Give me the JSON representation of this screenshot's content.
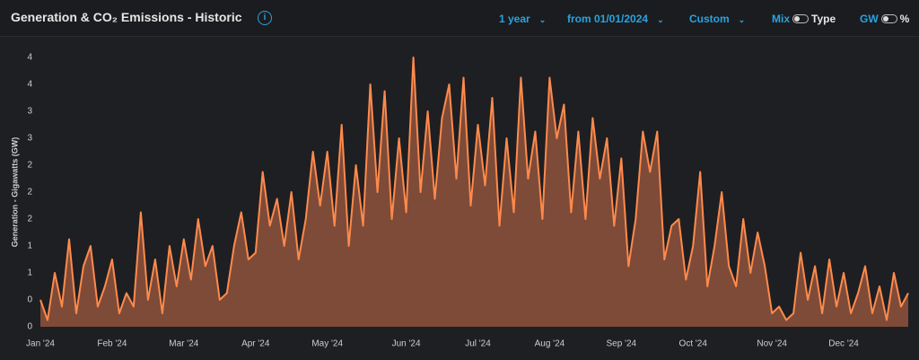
{
  "header": {
    "title": "Generation & CO₂ Emissions - Historic",
    "controls": [
      "1 year",
      "from 01/01/2024",
      "Custom"
    ],
    "toggles": [
      {
        "left": "Mix",
        "right": "Type"
      },
      {
        "left": "GW",
        "right": "%"
      }
    ]
  },
  "chart_data": {
    "type": "area",
    "y_label": "Generation - Gigawatts (GW)",
    "color": "#ff8a4c",
    "fill": "#7e4b38",
    "grid": false,
    "categories": [
      "Jan '24",
      null,
      null,
      null,
      null,
      null,
      null,
      null,
      null,
      null,
      "Feb '24",
      null,
      null,
      null,
      null,
      null,
      null,
      null,
      null,
      null,
      "Mar '24",
      null,
      null,
      null,
      null,
      null,
      null,
      null,
      null,
      null,
      "Apr '24",
      null,
      null,
      null,
      null,
      null,
      null,
      null,
      null,
      null,
      "May '24",
      null,
      null,
      null,
      null,
      null,
      null,
      null,
      null,
      null,
      null,
      "Jun '24",
      null,
      null,
      null,
      null,
      null,
      null,
      null,
      null,
      null,
      "Jul '24",
      null,
      null,
      null,
      null,
      null,
      null,
      null,
      null,
      null,
      "Aug '24",
      null,
      null,
      null,
      null,
      null,
      null,
      null,
      null,
      null,
      "Sep '24",
      null,
      null,
      null,
      null,
      null,
      null,
      null,
      null,
      null,
      "Oct '24",
      null,
      null,
      null,
      null,
      null,
      null,
      null,
      null,
      null,
      null,
      "Nov '24",
      null,
      null,
      null,
      null,
      null,
      null,
      null,
      null,
      null,
      "Dec '24",
      null,
      null,
      null,
      null,
      null,
      null,
      null,
      null,
      null
    ],
    "values": [
      0.4,
      0.1,
      0.8,
      0.3,
      1.3,
      0.2,
      0.9,
      1.2,
      0.3,
      0.6,
      1.0,
      0.2,
      0.5,
      0.3,
      1.7,
      0.4,
      1.0,
      0.2,
      1.2,
      0.6,
      1.3,
      0.7,
      1.6,
      0.9,
      1.2,
      0.4,
      0.5,
      1.2,
      1.7,
      1.0,
      1.1,
      2.3,
      1.5,
      1.9,
      1.2,
      2.0,
      1.0,
      1.6,
      2.6,
      1.8,
      2.6,
      1.5,
      3.0,
      1.2,
      2.4,
      1.5,
      3.6,
      2.0,
      3.5,
      1.6,
      2.8,
      1.7,
      4.0,
      2.0,
      3.2,
      1.9,
      3.1,
      3.6,
      2.2,
      3.7,
      1.8,
      3.0,
      2.1,
      3.4,
      1.5,
      2.8,
      1.7,
      3.7,
      2.2,
      2.9,
      1.6,
      3.7,
      2.8,
      3.3,
      1.7,
      2.9,
      1.6,
      3.1,
      2.2,
      2.8,
      1.5,
      2.5,
      0.9,
      1.6,
      2.9,
      2.3,
      2.9,
      1.0,
      1.5,
      1.6,
      0.7,
      1.2,
      2.3,
      0.6,
      1.2,
      2.0,
      0.9,
      0.6,
      1.6,
      0.8,
      1.4,
      0.9,
      0.2,
      0.3,
      0.1,
      0.2,
      1.1,
      0.4,
      0.9,
      0.2,
      1.0,
      0.3,
      0.8,
      0.2,
      0.5,
      0.9,
      0.2,
      0.6,
      0.1,
      0.8,
      0.3,
      0.5
    ],
    "ylim": [
      0,
      4.0
    ],
    "yticks": [
      0,
      {
        "value": 0.4,
        "label": "0"
      },
      {
        "value": 0.8,
        "label": "1"
      },
      {
        "value": 1.2,
        "label": "1"
      },
      {
        "value": 1.6,
        "label": "2"
      },
      {
        "value": 2.0,
        "label": "2"
      },
      {
        "value": 2.4,
        "label": "2"
      },
      {
        "value": 2.8,
        "label": "3"
      },
      {
        "value": 3.2,
        "label": "3"
      },
      {
        "value": 3.6,
        "label": "4"
      },
      {
        "value": 4.0,
        "label": "4"
      }
    ]
  }
}
